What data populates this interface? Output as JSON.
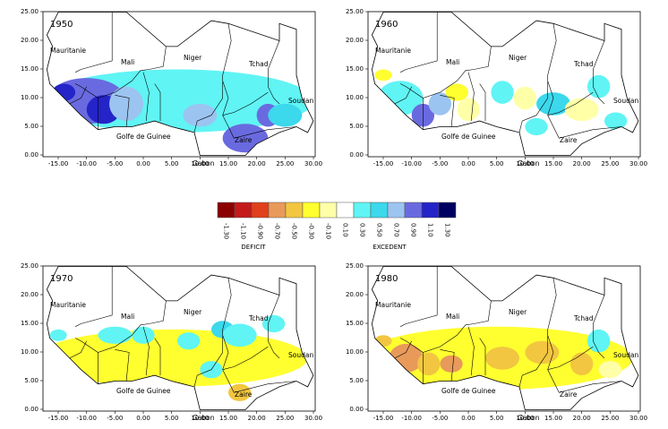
{
  "panels": [
    {
      "year": "1950",
      "places": [
        "Mauritanie",
        "Mali",
        "Niger",
        "Tchad",
        "Soudan",
        "Golfe de Guinee",
        "Zaire",
        "Gabon"
      ]
    },
    {
      "year": "1960",
      "places": [
        "Mauritanie",
        "Mali",
        "Niger",
        "Tchad",
        "Soudan",
        "Golfe de Guinee",
        "Zaire",
        "Gabon"
      ]
    },
    {
      "year": "1970",
      "places": [
        "Mauritanie",
        "Mali",
        "Niger",
        "Tchad",
        "Soudan",
        "Golfe de Guinee",
        "Zaire",
        "Gabon"
      ]
    },
    {
      "year": "1980",
      "places": [
        "Mauritanie",
        "Mali",
        "Niger",
        "Tchad",
        "Soudan",
        "Golfe de Guinee",
        "Zaire",
        "Gabon"
      ]
    }
  ],
  "yticks": [
    "0.00",
    "5.00",
    "10.00",
    "15.00",
    "20.00",
    "25.00"
  ],
  "xticks": [
    "-15.00",
    "-10.00",
    "-5.00",
    "0.00",
    "5.00",
    "10.00",
    "15.00",
    "20.00",
    "25.00",
    "30.00"
  ],
  "legend": {
    "labels": [
      "-1.30",
      "-1.10",
      "-0.90",
      "-0.70",
      "-0.50",
      "-0.30",
      "-0.10",
      "0.10",
      "0.30",
      "0.50",
      "0.70",
      "0.90",
      "1.10",
      "1.30"
    ],
    "colors": [
      "#8b0000",
      "#c41a1a",
      "#e0401c",
      "#e89a5a",
      "#f2c640",
      "#ffff30",
      "#ffffa8",
      "#ffffff",
      "#60f4f4",
      "#3cd8ec",
      "#9cc4f0",
      "#6a6ae0",
      "#2424c8",
      "#000060"
    ],
    "deficit": "DEFICIT",
    "excedent": "EXCEDENT"
  }
}
